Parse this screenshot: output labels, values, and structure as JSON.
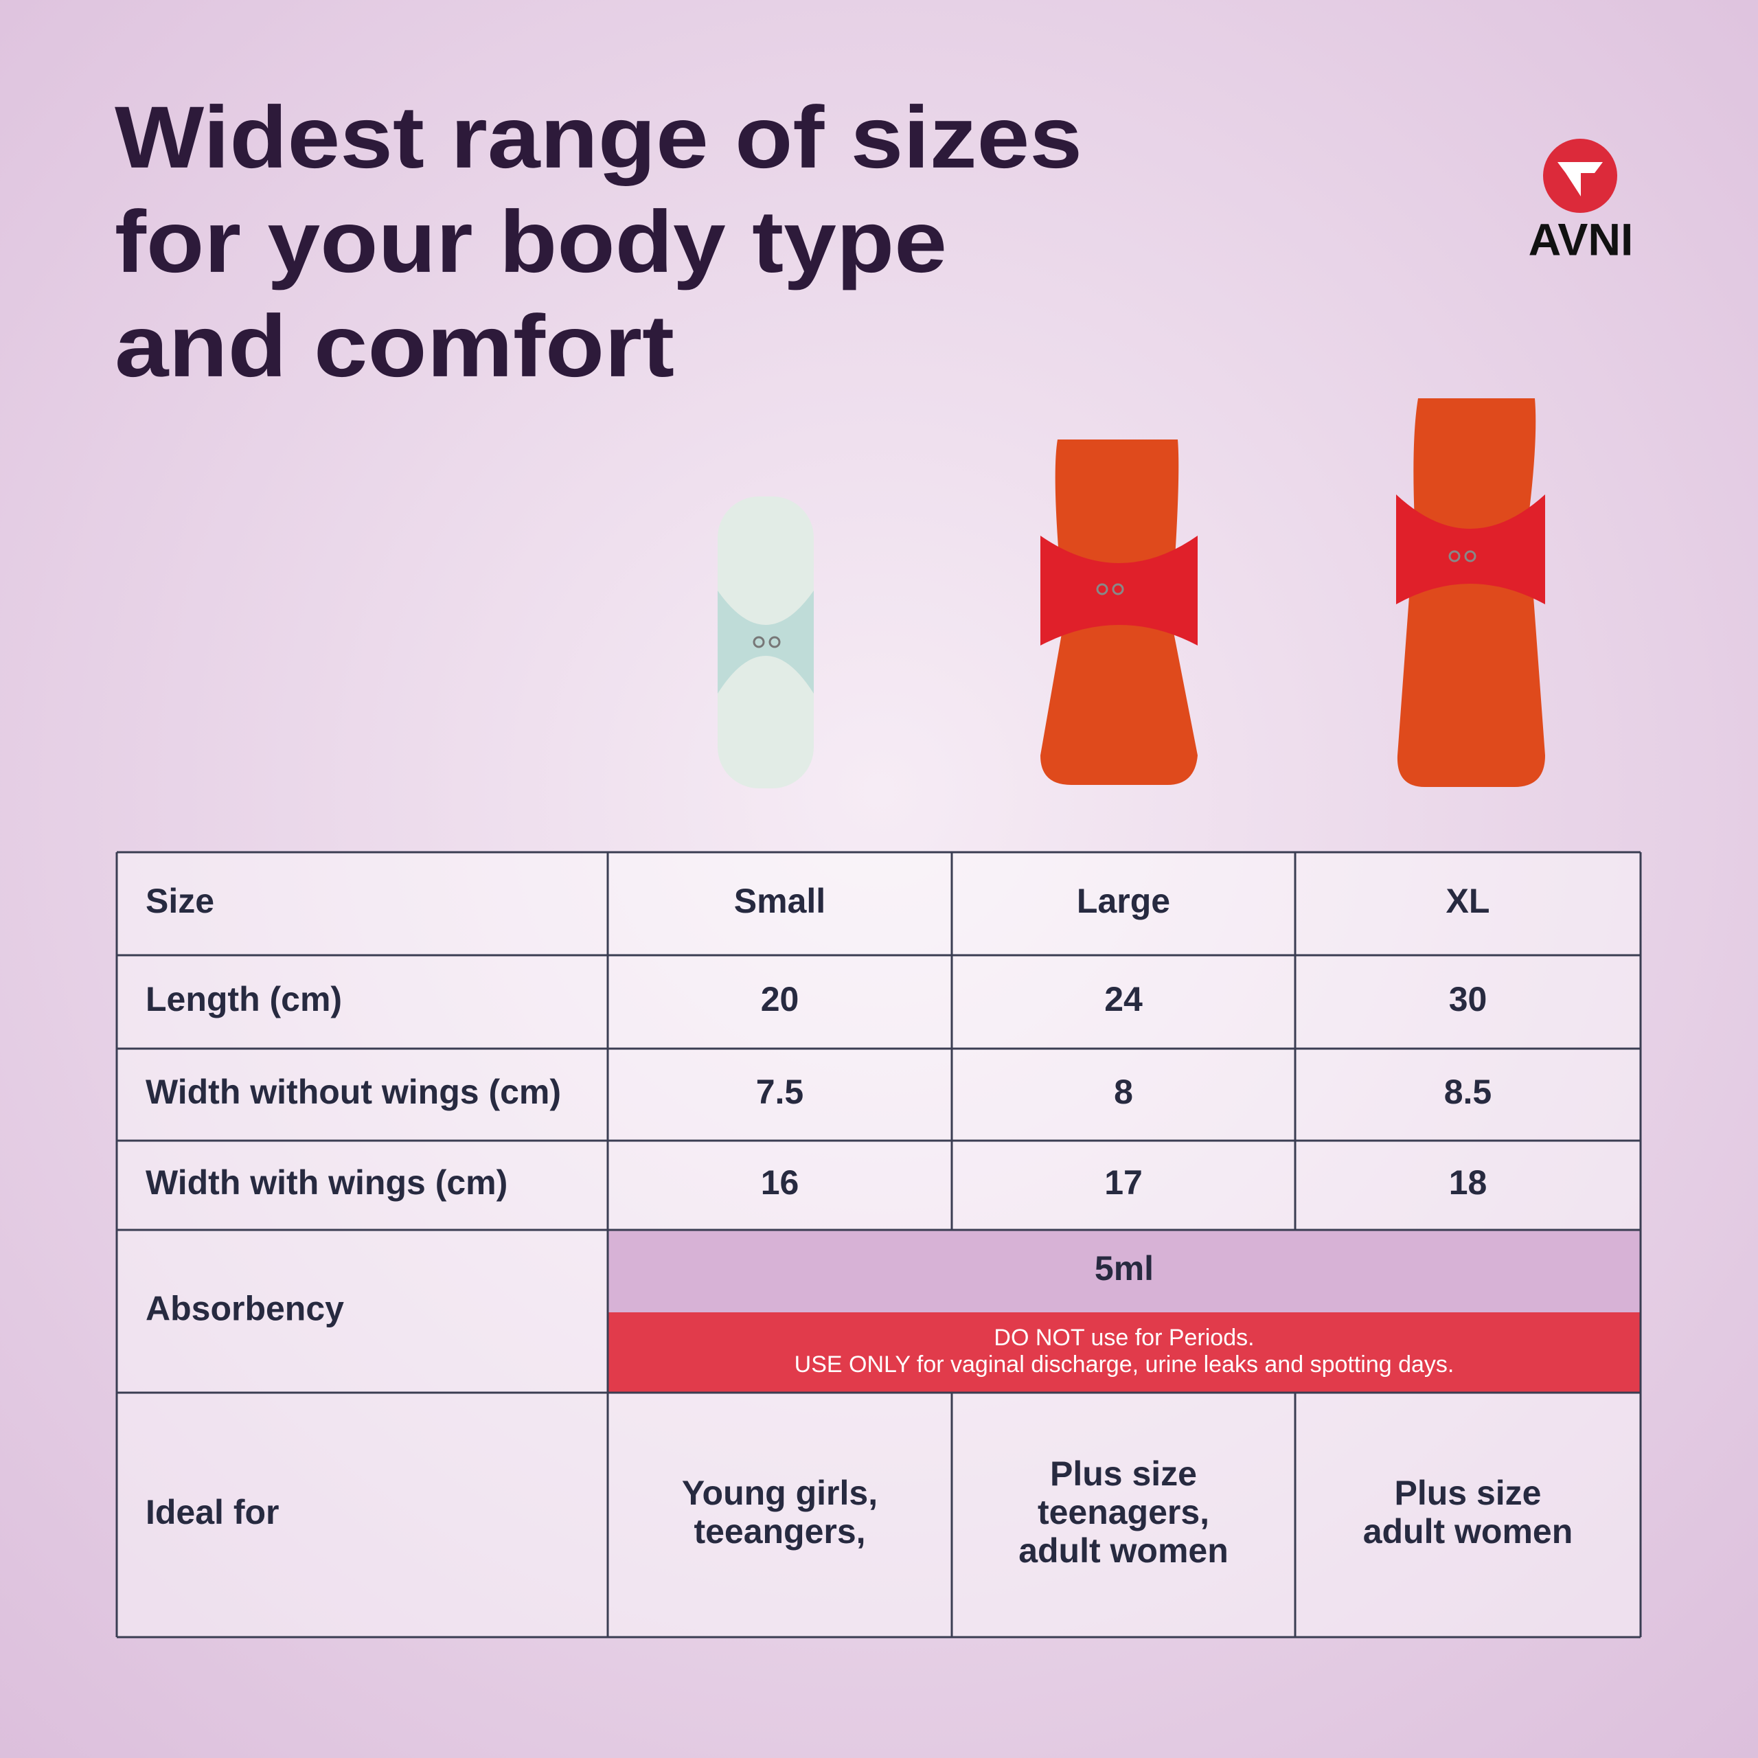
{
  "header": {
    "title_lines": [
      "Widest range of sizes",
      "for your body type",
      "and comfort"
    ],
    "brand": "AVNI"
  },
  "table": {
    "columns": [
      "Size",
      "Small",
      "Large",
      "XL"
    ],
    "rows": [
      [
        "Length (cm)",
        20,
        24,
        30
      ],
      [
        "Width without wings (cm)",
        7.5,
        8,
        8.5
      ],
      [
        "Width with wings (cm)",
        16,
        17,
        18
      ]
    ],
    "absorbency": {
      "label": "Absorbency",
      "value": "5ml",
      "warning_lines": [
        "DO NOT use for Periods.",
        "USE ONLY for vaginal discharge, urine leaks and spotting days."
      ]
    },
    "ideal_for": {
      "label": "Ideal for",
      "cells": [
        [
          "Young girls,",
          "teeangers,"
        ],
        [
          "Plus size",
          "teenagers,",
          "adult women"
        ],
        [
          "Plus size",
          "adult women"
        ]
      ]
    }
  }
}
